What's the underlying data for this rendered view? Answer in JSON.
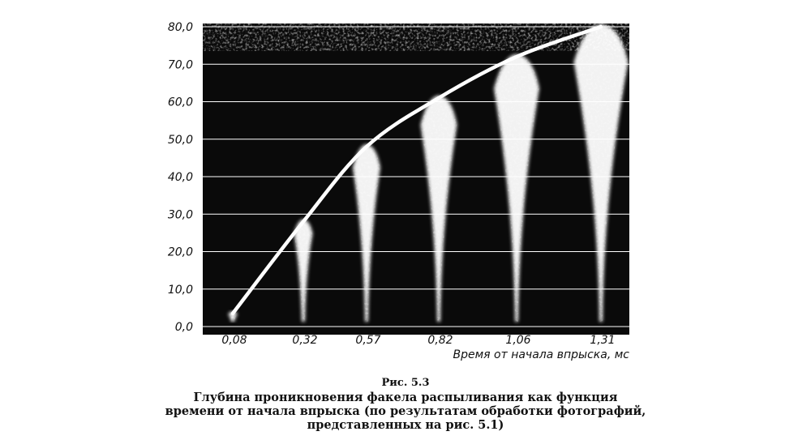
{
  "chart_data": {
    "type": "line",
    "x_ticks": [
      "0,08",
      "0,32",
      "0,57",
      "0,82",
      "1,06",
      "1,31"
    ],
    "y_ticks": [
      "0,0",
      "10,0",
      "20,0",
      "30,0",
      "40,0",
      "50,0",
      "60,0",
      "70,0",
      "80,0"
    ],
    "xlabel": "Время от начала впрыска, мс",
    "ylabel": "",
    "ylim": [
      0,
      80
    ],
    "x": [
      0.08,
      0.32,
      0.57,
      0.82,
      1.06,
      1.31
    ],
    "series": [
      {
        "values": [
          3.5,
          28.0,
          48.0,
          61.0,
          72.0,
          80.0
        ]
      }
    ],
    "grid": true,
    "background": "spray photographs on black",
    "colors": {
      "background": "#0a0a0a",
      "curve": "#ffffff",
      "grid": "#ffffff",
      "spray": "#ffffff"
    }
  },
  "caption": {
    "number": "Рис. 5.3",
    "lines": [
      "Глубина проникновения факела распыливания как функция",
      "времени от начала впрыска (по результатам обработки фотографий,",
      "представленных на рис. 5.1)"
    ]
  }
}
